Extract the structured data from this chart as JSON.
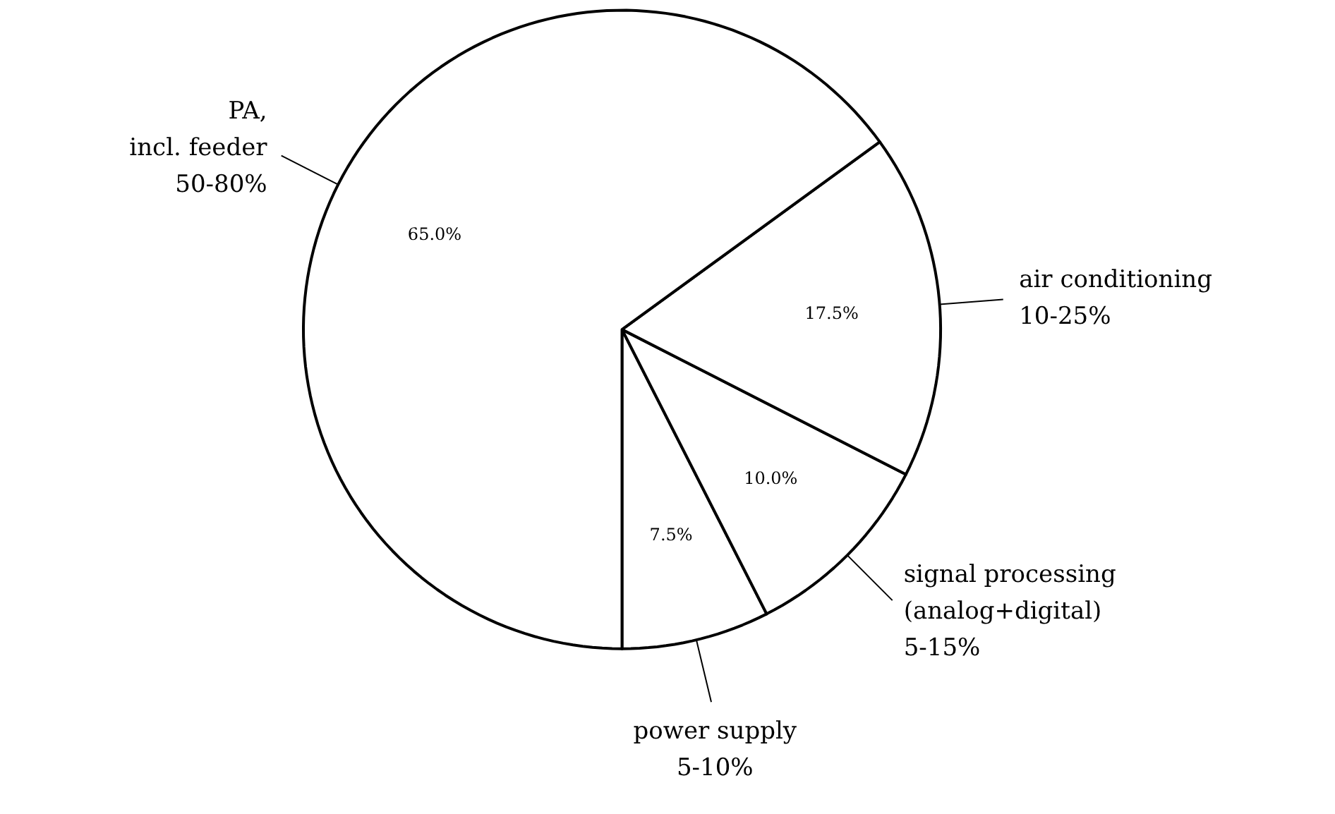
{
  "chart_data": {
    "type": "pie",
    "categories": [
      "power supply\n5-10%",
      "signal processing\n(analog+digital)\n5-15%",
      "air conditioning\n10-25%",
      "PA,\nincl. feeder\n50-80%"
    ],
    "values": [
      7.5,
      10,
      17.5,
      65
    ],
    "colors": [
      "#ffffff",
      "#ffffff",
      "#ffffff",
      "#ffffff"
    ],
    "value_labels": [
      "7.5%",
      "10.0%",
      "17.5%",
      "65.0%"
    ]
  }
}
